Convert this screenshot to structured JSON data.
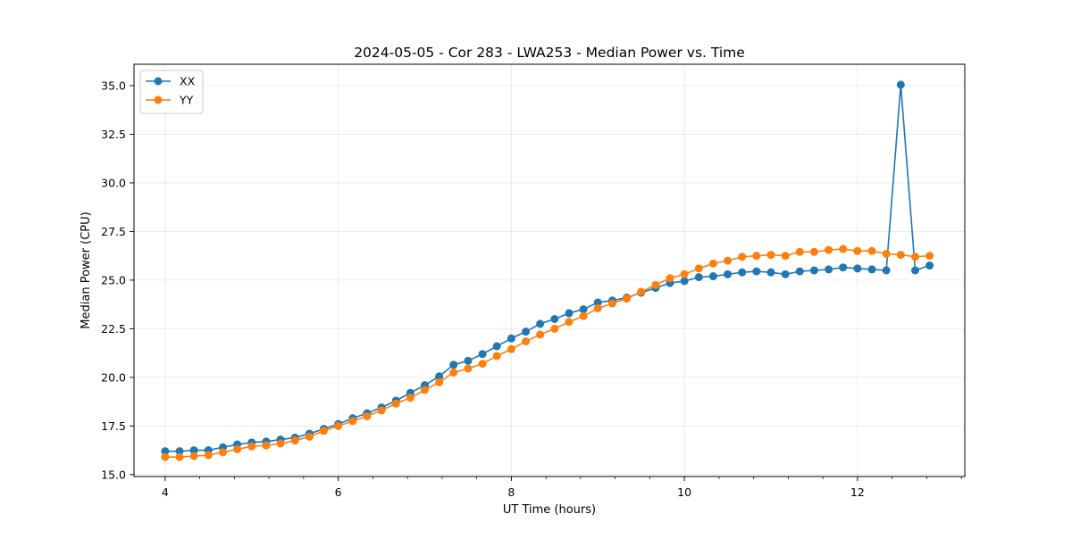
{
  "chart_data": {
    "type": "line",
    "title": "2024-05-05 - Cor 283 - LWA253 - Median Power vs. Time",
    "xlabel": "UT Time (hours)",
    "ylabel": "Median Power (CPU)",
    "xlim": [
      3.64,
      13.24
    ],
    "ylim": [
      14.9,
      36.1
    ],
    "xticks": [
      4,
      6,
      8,
      10,
      12
    ],
    "xtick_labels": [
      "4",
      "6",
      "8",
      "10",
      "12"
    ],
    "yticks": [
      15.0,
      17.5,
      20.0,
      22.5,
      25.0,
      27.5,
      30.0,
      32.5,
      35.0
    ],
    "ytick_labels": [
      "15.0",
      "17.5",
      "20.0",
      "22.5",
      "25.0",
      "27.5",
      "30.0",
      "32.5",
      "35.0"
    ],
    "grid": true,
    "legend_position": "top-left",
    "x": [
      4.0,
      4.167,
      4.333,
      4.5,
      4.667,
      4.833,
      5.0,
      5.167,
      5.333,
      5.5,
      5.667,
      5.833,
      6.0,
      6.167,
      6.333,
      6.5,
      6.667,
      6.833,
      7.0,
      7.167,
      7.333,
      7.5,
      7.667,
      7.833,
      8.0,
      8.167,
      8.333,
      8.5,
      8.667,
      8.833,
      9.0,
      9.167,
      9.333,
      9.5,
      9.667,
      9.833,
      10.0,
      10.167,
      10.333,
      10.5,
      10.667,
      10.833,
      11.0,
      11.167,
      11.333,
      11.5,
      11.667,
      11.833,
      12.0,
      12.167,
      12.333,
      12.5,
      12.667,
      12.833
    ],
    "series": [
      {
        "name": "XX",
        "color": "#1f77b4",
        "values": [
          16.2,
          16.2,
          16.25,
          16.25,
          16.4,
          16.55,
          16.65,
          16.7,
          16.8,
          16.9,
          17.1,
          17.35,
          17.6,
          17.9,
          18.15,
          18.45,
          18.8,
          19.2,
          19.6,
          20.05,
          20.65,
          20.85,
          21.2,
          21.6,
          22.0,
          22.35,
          22.75,
          23.0,
          23.3,
          23.5,
          23.85,
          23.95,
          24.1,
          24.35,
          24.6,
          24.85,
          24.95,
          25.15,
          25.2,
          25.3,
          25.4,
          25.45,
          25.4,
          25.3,
          25.45,
          25.5,
          25.55,
          25.65,
          25.6,
          25.55,
          25.5,
          35.05,
          25.5,
          25.75
        ]
      },
      {
        "name": "YY",
        "color": "#ff7f0e",
        "values": [
          15.9,
          15.9,
          15.95,
          16.0,
          16.15,
          16.3,
          16.45,
          16.5,
          16.6,
          16.75,
          16.95,
          17.25,
          17.5,
          17.75,
          18.0,
          18.3,
          18.65,
          18.95,
          19.35,
          19.75,
          20.25,
          20.45,
          20.7,
          21.1,
          21.45,
          21.85,
          22.2,
          22.5,
          22.85,
          23.15,
          23.55,
          23.8,
          24.05,
          24.4,
          24.75,
          25.1,
          25.3,
          25.6,
          25.85,
          26.0,
          26.2,
          26.25,
          26.3,
          26.25,
          26.45,
          26.45,
          26.55,
          26.6,
          26.5,
          26.5,
          26.35,
          26.3,
          26.2,
          26.25
        ]
      }
    ]
  }
}
